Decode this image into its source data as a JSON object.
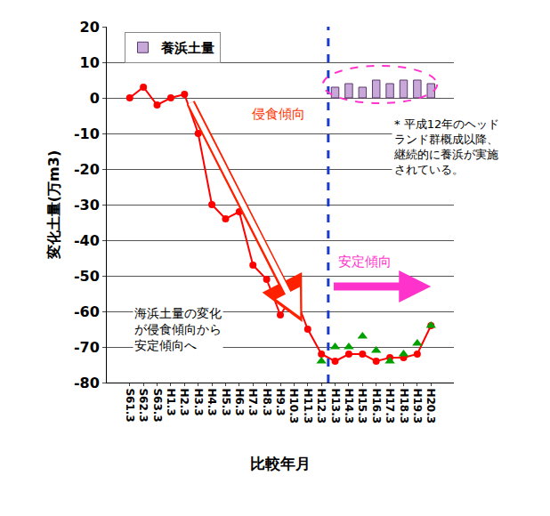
{
  "chart_data": {
    "type": "line",
    "x_label": "比較年月",
    "y_label": "変化土量(万m3)",
    "categories": [
      "S61.3",
      "S62.3",
      "S63.3",
      "H1.3",
      "H2.3",
      "H3.3",
      "H4.3",
      "H5.3",
      "H6.3",
      "H7.3",
      "H8.3",
      "H9.3",
      "H10.3",
      "H11.3",
      "H12.3",
      "H13.3",
      "H14.3",
      "H15.3",
      "H16.3",
      "H17.3",
      "H18.3",
      "H19.3",
      "H20.3"
    ],
    "series": [
      {
        "name": "養浜土量",
        "type": "bar",
        "color": "#c8a8d8",
        "values": [
          null,
          null,
          null,
          null,
          null,
          null,
          null,
          null,
          null,
          null,
          null,
          null,
          null,
          null,
          null,
          3,
          4,
          3,
          5,
          4,
          5,
          5,
          4
        ]
      },
      {
        "type": "line",
        "color": "#ff0000",
        "marker": "circle",
        "values": [
          0,
          3,
          -2,
          0,
          1,
          -10,
          -30,
          -34,
          -32,
          -47,
          -51,
          -61,
          -55,
          -65,
          -72,
          -74,
          -72,
          -72,
          -74,
          -73,
          -73,
          -72,
          -64
        ]
      },
      {
        "type": "scatter",
        "color": "#00a000",
        "marker": "triangle-up",
        "values": [
          null,
          null,
          null,
          null,
          null,
          null,
          null,
          null,
          null,
          null,
          null,
          null,
          null,
          null,
          -74,
          -70,
          -70,
          -67,
          -71,
          -74,
          -72,
          -69,
          -64
        ]
      }
    ],
    "annotations": [
      "侵食傾向",
      "安定傾向",
      "海浜土量の変化が侵食傾向から安定傾向へ",
      "* 平成12年のヘッドランド群概成以降、継続的に養浜が実施されている。"
    ],
    "ylim": [
      -80,
      20
    ],
    "yticks": [
      -80,
      -70,
      -60,
      -50,
      -40,
      -30,
      -20,
      -10,
      0,
      10,
      20
    ],
    "grid": true,
    "legend": "top left"
  }
}
